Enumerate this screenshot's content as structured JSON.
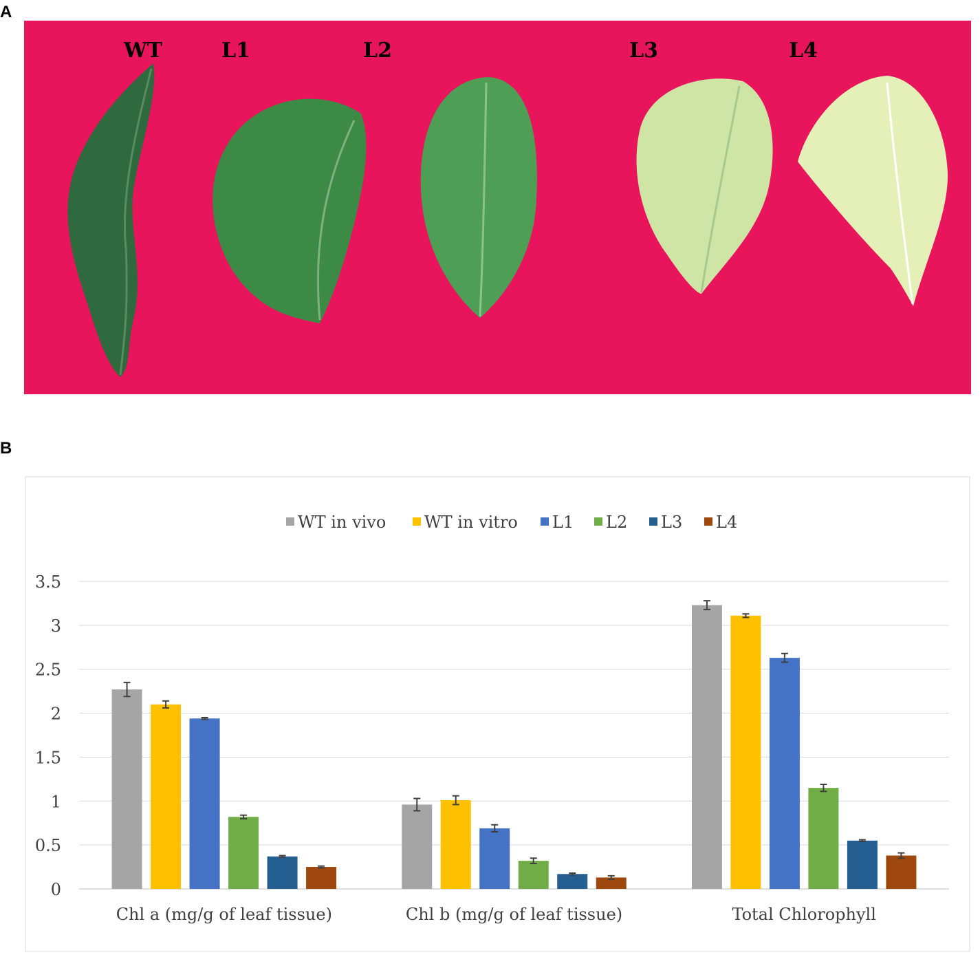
{
  "panel_a": {
    "letter": "A",
    "photo_labels": [
      "WT",
      "L1",
      "L2",
      "L3",
      "L4"
    ],
    "colors": {
      "background": "#e8145c",
      "leaf_dark": "#2f6a3e",
      "leaf_mid": "#3d8a47",
      "leaf_light": "#4f9e55",
      "leaf_pale": "#cfe5a6",
      "leaf_paler": "#e4f0b7"
    }
  },
  "panel_b": {
    "letter": "B"
  },
  "chart_data": {
    "type": "bar",
    "categories": [
      "Chl a (mg/g of leaf tissue)",
      "Chl b (mg/g of leaf tissue)",
      "Total Chlorophyll"
    ],
    "series": [
      {
        "name": "WT in vivo",
        "color": "#a5a5a5",
        "values": [
          2.27,
          0.96,
          3.23
        ],
        "errors": [
          0.08,
          0.07,
          0.05
        ]
      },
      {
        "name": "WT in vitro",
        "color": "#ffc000",
        "values": [
          2.1,
          1.01,
          3.11
        ],
        "errors": [
          0.04,
          0.05,
          0.02
        ]
      },
      {
        "name": "L1",
        "color": "#4472c4",
        "values": [
          1.94,
          0.69,
          2.63
        ],
        "errors": [
          0.01,
          0.04,
          0.05
        ]
      },
      {
        "name": "L2",
        "color": "#70ad47",
        "values": [
          0.82,
          0.32,
          1.15
        ],
        "errors": [
          0.02,
          0.03,
          0.04
        ]
      },
      {
        "name": "L3",
        "color": "#255e91",
        "values": [
          0.37,
          0.17,
          0.55
        ],
        "errors": [
          0.01,
          0.01,
          0.01
        ]
      },
      {
        "name": "L4",
        "color": "#9e480e",
        "values": [
          0.25,
          0.13,
          0.38
        ],
        "errors": [
          0.01,
          0.02,
          0.03
        ]
      }
    ],
    "yticks": [
      "0",
      "0.5",
      "1",
      "1.5",
      "2",
      "2.5",
      "3",
      "3.5"
    ],
    "ylim": [
      0,
      3.5
    ],
    "grid": true,
    "legend": "top-center",
    "title": "",
    "xlabel": "",
    "ylabel": ""
  }
}
